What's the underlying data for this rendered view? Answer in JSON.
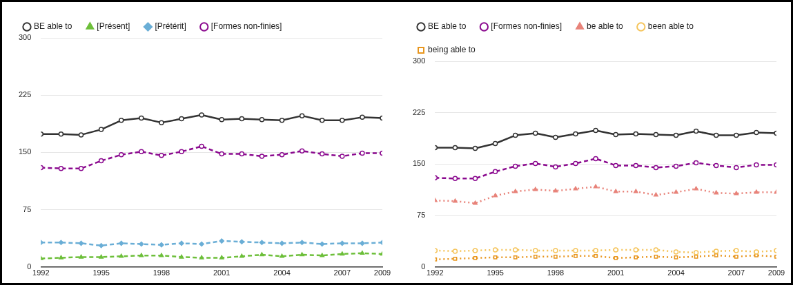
{
  "chart_data": [
    {
      "type": "line",
      "x": [
        1992,
        1993,
        1994,
        1995,
        1996,
        1997,
        1998,
        1999,
        2000,
        2001,
        2002,
        2003,
        2004,
        2005,
        2006,
        2007,
        2008,
        2009
      ],
      "xlim": [
        1992,
        2009
      ],
      "xticks": [
        1992,
        1995,
        1998,
        2001,
        2004,
        2007,
        2009
      ],
      "ylim": [
        0,
        300
      ],
      "yticks": [
        0,
        75,
        150,
        225,
        300
      ],
      "grid": "y",
      "legend": "top",
      "series": [
        {
          "name": "BE able to",
          "color": "#333333",
          "marker": "circle",
          "line_style": "solid",
          "values": [
            174,
            174,
            173,
            180,
            192,
            195,
            189,
            194,
            199,
            193,
            194,
            193,
            192,
            198,
            192,
            192,
            196,
            195
          ]
        },
        {
          "name": "[Présent]",
          "color": "#6dbf3a",
          "marker": "triangle",
          "line_style": "dashed",
          "values": [
            11,
            12,
            13,
            13,
            14,
            15,
            15,
            13,
            12,
            12,
            14,
            16,
            14,
            16,
            15,
            17,
            18,
            17
          ]
        },
        {
          "name": "[Prétérit]",
          "color": "#6aaed6",
          "marker": "diamond",
          "line_style": "dashed",
          "values": [
            32,
            32,
            31,
            28,
            31,
            30,
            29,
            31,
            30,
            34,
            33,
            32,
            31,
            32,
            30,
            31,
            31,
            32
          ]
        },
        {
          "name": "[Formes non-finies]",
          "color": "#8b0a8f",
          "marker": "circle",
          "line_style": "dashed",
          "values": [
            130,
            129,
            129,
            139,
            147,
            151,
            146,
            151,
            158,
            148,
            148,
            145,
            147,
            152,
            148,
            145,
            149,
            149
          ]
        }
      ]
    },
    {
      "type": "line",
      "x": [
        1992,
        1993,
        1994,
        1995,
        1996,
        1997,
        1998,
        1999,
        2000,
        2001,
        2002,
        2003,
        2004,
        2005,
        2006,
        2007,
        2008,
        2009
      ],
      "xlim": [
        1992,
        2009
      ],
      "xticks": [
        1992,
        1995,
        1998,
        2001,
        2004,
        2007,
        2009
      ],
      "ylim": [
        0,
        300
      ],
      "yticks": [
        0,
        75,
        150,
        225,
        300
      ],
      "grid": "y",
      "legend": "top",
      "series": [
        {
          "name": "BE able to",
          "color": "#333333",
          "marker": "circle",
          "line_style": "solid",
          "values": [
            174,
            174,
            173,
            180,
            192,
            195,
            189,
            194,
            199,
            193,
            194,
            193,
            192,
            198,
            192,
            192,
            196,
            195
          ]
        },
        {
          "name": "[Formes non-finies]",
          "color": "#8b0a8f",
          "marker": "circle",
          "line_style": "dashed",
          "values": [
            130,
            129,
            129,
            139,
            147,
            151,
            146,
            151,
            158,
            148,
            148,
            145,
            147,
            152,
            148,
            145,
            149,
            149
          ]
        },
        {
          "name": "be able to",
          "color": "#e8837a",
          "marker": "triangle",
          "line_style": "dotted",
          "values": [
            97,
            96,
            93,
            104,
            110,
            113,
            111,
            114,
            117,
            110,
            110,
            105,
            109,
            114,
            108,
            107,
            109,
            109
          ]
        },
        {
          "name": "been able to",
          "color": "#f5c45a",
          "marker": "circle",
          "line_style": "dotted",
          "values": [
            24,
            23,
            24,
            25,
            25,
            24,
            24,
            24,
            24,
            25,
            25,
            25,
            22,
            21,
            23,
            24,
            22,
            24
          ]
        },
        {
          "name": "being able to",
          "color": "#e8961e",
          "marker": "square",
          "line_style": "dotted",
          "values": [
            11,
            12,
            13,
            14,
            14,
            15,
            15,
            16,
            16,
            13,
            14,
            15,
            14,
            15,
            17,
            15,
            17,
            15
          ]
        }
      ]
    }
  ]
}
